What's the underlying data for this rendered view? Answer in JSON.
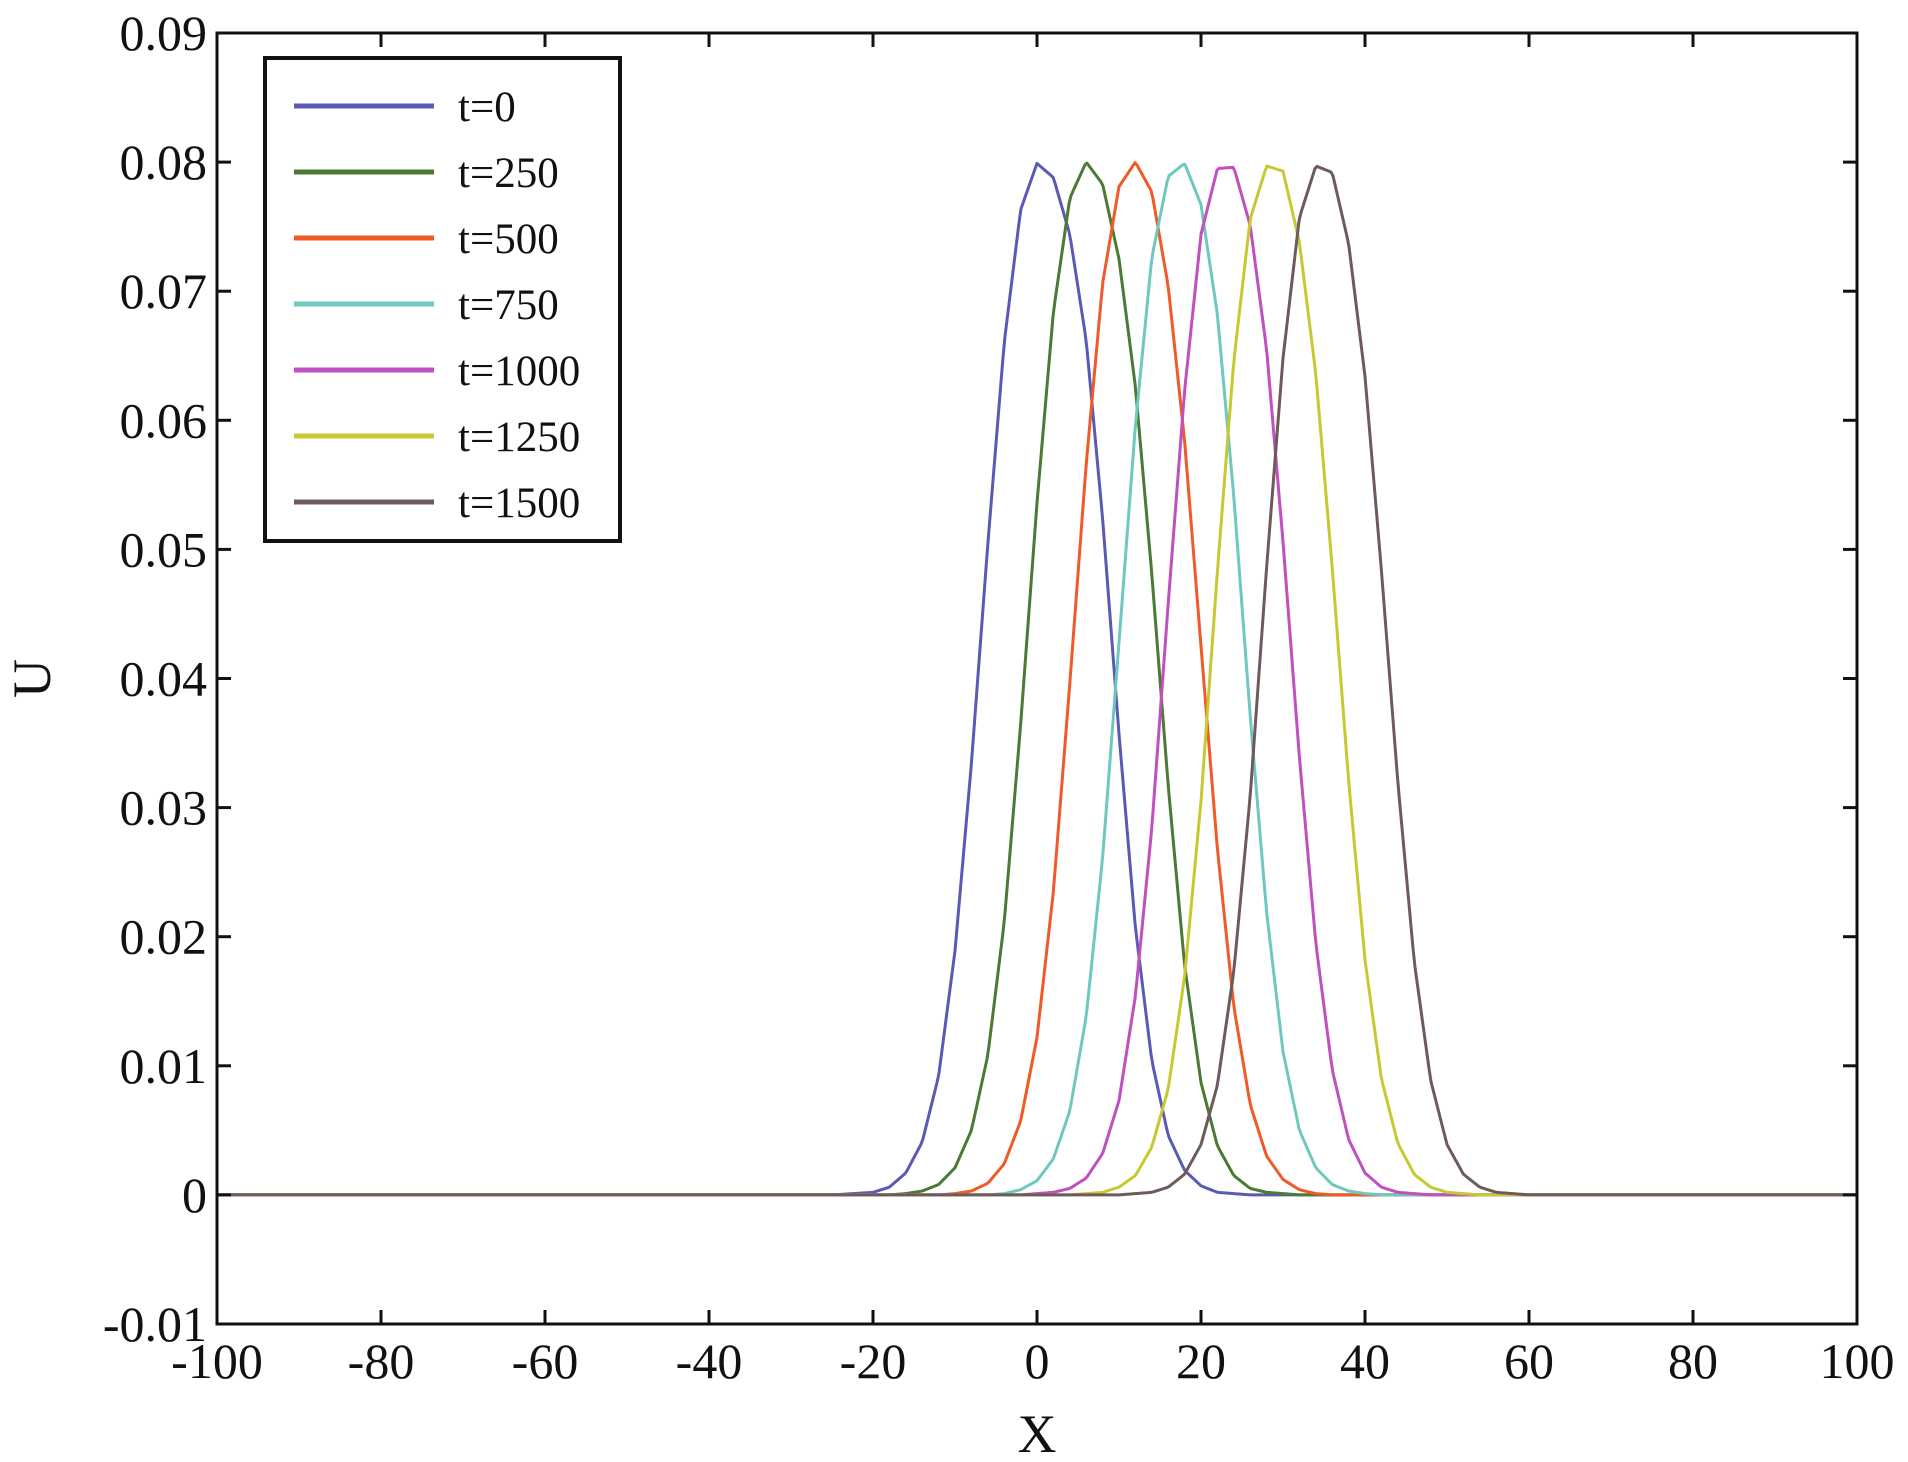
{
  "chart_data": {
    "type": "line",
    "title": "",
    "xlabel": "X",
    "ylabel": "U",
    "xlim": [
      -100,
      100
    ],
    "ylim": [
      -0.01,
      0.09
    ],
    "xticks": [
      -100,
      -80,
      -60,
      -40,
      -20,
      0,
      20,
      40,
      60,
      80,
      100
    ],
    "xtick_labels": [
      "-100",
      "-80",
      "-60",
      "-40",
      "-20",
      "0",
      "20",
      "40",
      "60",
      "80",
      "100"
    ],
    "yticks": [
      -0.01,
      0,
      0.01,
      0.02,
      0.03,
      0.04,
      0.05,
      0.06,
      0.07,
      0.08,
      0.09
    ],
    "ytick_labels": [
      "-0.01",
      "0",
      "0.01",
      "0.02",
      "0.03",
      "0.04",
      "0.05",
      "0.06",
      "0.07",
      "0.08",
      "0.09"
    ],
    "grid": false,
    "legend_position": "top-left",
    "x": [
      -100,
      -30,
      -25,
      -20,
      -18,
      -16,
      -14,
      -12,
      -10,
      -8,
      -6,
      -4,
      -2,
      0,
      2,
      4,
      6,
      8,
      10,
      12,
      14,
      16,
      18,
      20,
      22,
      24,
      26,
      28,
      30,
      32,
      34,
      36,
      38,
      40,
      42,
      44,
      46,
      48,
      50,
      52,
      54,
      56,
      58,
      60,
      62,
      64,
      66,
      70,
      75,
      100
    ],
    "series": [
      {
        "name": "t=0",
        "color": "#5a5ab4",
        "values": [
          0,
          0,
          0,
          0.0002,
          0.0006,
          0.0017,
          0.0041,
          0.0092,
          0.0189,
          0.0334,
          0.0504,
          0.066,
          0.0763,
          0.0799,
          0.0788,
          0.0744,
          0.0662,
          0.0524,
          0.0357,
          0.0207,
          0.0104,
          0.0046,
          0.0019,
          0.0007,
          0.0002,
          0.0001,
          0,
          0,
          0,
          0,
          0,
          0,
          0,
          0,
          0,
          0,
          0,
          0,
          0,
          0,
          0,
          0,
          0,
          0,
          0,
          0,
          0,
          0,
          0,
          0
        ]
      },
      {
        "name": "t=250",
        "color": "#4a7a34",
        "values": [
          0,
          0,
          0,
          0,
          0,
          0.0001,
          0.0003,
          0.0008,
          0.0021,
          0.005,
          0.0108,
          0.0211,
          0.0364,
          0.0536,
          0.0684,
          0.0772,
          0.08,
          0.0783,
          0.0725,
          0.0626,
          0.0481,
          0.0317,
          0.0178,
          0.0087,
          0.0038,
          0.0015,
          0.0005,
          0.0002,
          0.0001,
          0,
          0,
          0,
          0,
          0,
          0,
          0,
          0,
          0,
          0,
          0,
          0,
          0,
          0,
          0,
          0,
          0,
          0,
          0,
          0,
          0
        ]
      },
      {
        "name": "t=500",
        "color": "#f05a28",
        "values": [
          0,
          0,
          0,
          0,
          0,
          0,
          0,
          0,
          0.0001,
          0.0003,
          0.0009,
          0.0024,
          0.0057,
          0.0122,
          0.0235,
          0.0396,
          0.0566,
          0.0706,
          0.0781,
          0.08,
          0.0777,
          0.0704,
          0.0584,
          0.0425,
          0.0268,
          0.0146,
          0.007,
          0.003,
          0.0012,
          0.0004,
          0.0001,
          0,
          0,
          0,
          0,
          0,
          0,
          0,
          0,
          0,
          0,
          0,
          0,
          0,
          0,
          0,
          0,
          0,
          0,
          0
        ]
      },
      {
        "name": "t=750",
        "color": "#6ec8be",
        "values": [
          0,
          0,
          0,
          0,
          0,
          0,
          0,
          0,
          0,
          0,
          0,
          0.0001,
          0.0004,
          0.0011,
          0.0028,
          0.0065,
          0.0138,
          0.0261,
          0.0428,
          0.0596,
          0.0726,
          0.0789,
          0.0799,
          0.0767,
          0.0682,
          0.0541,
          0.0371,
          0.0219,
          0.0111,
          0.005,
          0.0021,
          0.0008,
          0.0003,
          0.0001,
          0,
          0,
          0,
          0,
          0,
          0,
          0,
          0,
          0,
          0,
          0,
          0,
          0,
          0,
          0,
          0
        ]
      },
      {
        "name": "t=1000",
        "color": "#c050c0",
        "values": [
          0,
          0,
          0,
          0,
          0,
          0,
          0,
          0,
          0,
          0,
          0,
          0,
          0,
          0.0001,
          0.0002,
          0.0005,
          0.0013,
          0.0032,
          0.0073,
          0.0154,
          0.0284,
          0.0458,
          0.0623,
          0.0744,
          0.0795,
          0.0796,
          0.0751,
          0.0655,
          0.0506,
          0.0339,
          0.0195,
          0.0097,
          0.0043,
          0.0017,
          0.0006,
          0.0002,
          0.0001,
          0,
          0,
          0,
          0,
          0,
          0,
          0,
          0,
          0,
          0,
          0,
          0,
          0
        ]
      },
      {
        "name": "t=1250",
        "color": "#c8c832",
        "values": [
          0,
          0,
          0,
          0,
          0,
          0,
          0,
          0,
          0,
          0,
          0,
          0,
          0,
          0,
          0,
          0,
          0.0001,
          0.0002,
          0.0006,
          0.0015,
          0.0037,
          0.0082,
          0.0169,
          0.0305,
          0.0483,
          0.0646,
          0.0756,
          0.0797,
          0.0793,
          0.0738,
          0.0636,
          0.0486,
          0.0321,
          0.0182,
          0.009,
          0.004,
          0.0016,
          0.0006,
          0.0002,
          0.0001,
          0,
          0,
          0,
          0,
          0,
          0,
          0,
          0,
          0,
          0
        ]
      },
      {
        "name": "t=1500",
        "color": "#6e5a5a",
        "values": [
          0,
          0,
          0,
          0,
          0,
          0,
          0,
          0,
          0,
          0,
          0,
          0,
          0,
          0,
          0,
          0,
          0,
          0,
          0,
          0.0001,
          0.0002,
          0.0006,
          0.0016,
          0.0039,
          0.0085,
          0.0173,
          0.0309,
          0.0486,
          0.0648,
          0.0757,
          0.0797,
          0.0792,
          0.0737,
          0.0634,
          0.0484,
          0.032,
          0.0181,
          0.0089,
          0.0039,
          0.0016,
          0.0006,
          0.0002,
          0.0001,
          0,
          0,
          0,
          0,
          0,
          0,
          0
        ]
      }
    ]
  }
}
